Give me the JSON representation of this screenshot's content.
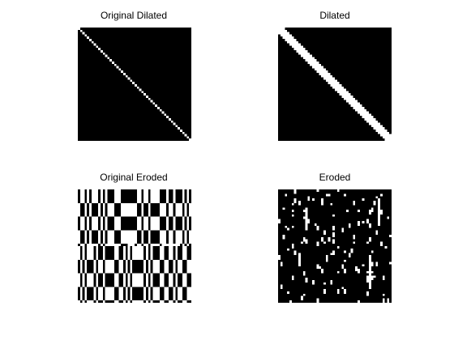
{
  "figure": {
    "background_color": "#ffffff",
    "panels": [
      {
        "title": "Original Dilated",
        "image": "binary-diagonal-thin",
        "foreground_color": "#ffffff",
        "background_color": "#000000",
        "matrix_size": 50
      },
      {
        "title": "Dilated",
        "image": "binary-diagonal-thick",
        "foreground_color": "#ffffff",
        "background_color": "#000000",
        "matrix_size": 50
      },
      {
        "title": "Original Eroded",
        "image": "binary-stripe-pattern",
        "foreground_color": "#ffffff",
        "background_color": "#000000",
        "matrix_size": 50
      },
      {
        "title": "Eroded",
        "image": "binary-eroded-dots",
        "foreground_color": "#ffffff",
        "background_color": "#000000",
        "matrix_size": 50
      }
    ]
  }
}
